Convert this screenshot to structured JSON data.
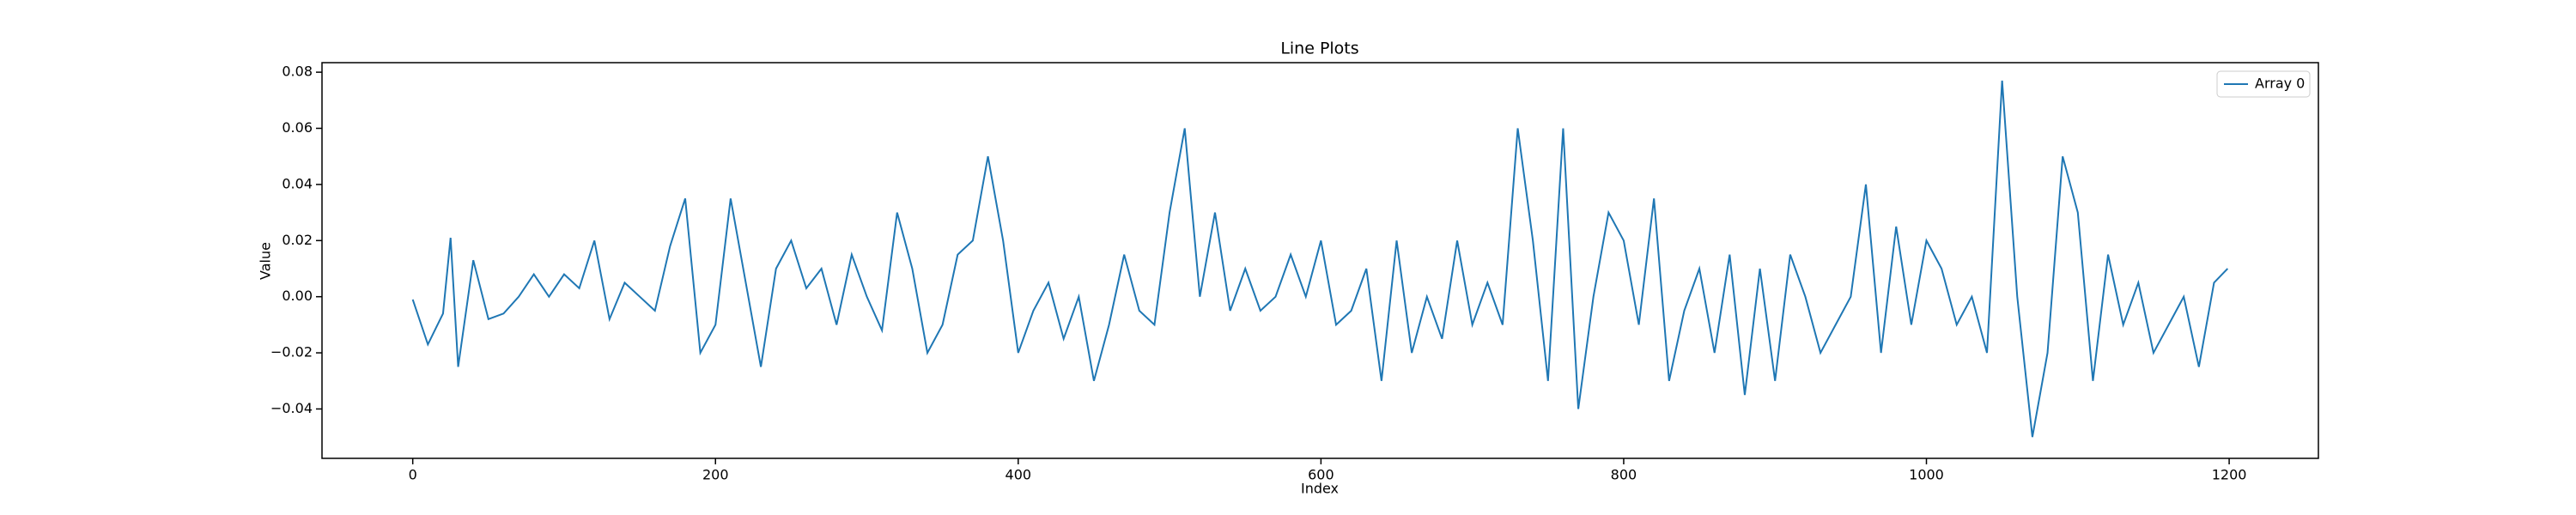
{
  "chart_data": {
    "type": "line",
    "title": "Line Plots",
    "xlabel": "Index",
    "ylabel": "Value",
    "x": [
      0,
      10,
      20,
      25,
      30,
      40,
      50,
      60,
      70,
      80,
      90,
      100,
      110,
      120,
      130,
      140,
      150,
      160,
      170,
      180,
      190,
      200,
      210,
      220,
      230,
      240,
      250,
      260,
      270,
      280,
      290,
      300,
      310,
      320,
      330,
      340,
      350,
      360,
      370,
      380,
      390,
      400,
      410,
      420,
      430,
      440,
      450,
      460,
      470,
      480,
      490,
      500,
      510,
      520,
      530,
      540,
      550,
      560,
      570,
      580,
      590,
      600,
      610,
      620,
      630,
      640,
      650,
      660,
      670,
      680,
      690,
      700,
      710,
      720,
      730,
      740,
      750,
      760,
      770,
      780,
      790,
      800,
      810,
      820,
      830,
      840,
      850,
      860,
      870,
      880,
      890,
      900,
      910,
      920,
      930,
      940,
      950,
      960,
      970,
      980,
      990,
      1000,
      1010,
      1020,
      1030,
      1040,
      1050,
      1060,
      1070,
      1080,
      1090,
      1100,
      1110,
      1120,
      1130,
      1140,
      1150,
      1160,
      1170,
      1180,
      1190,
      1199
    ],
    "series": [
      {
        "name": "Array 0",
        "color": "#1f77b4",
        "values": [
          -0.001,
          -0.017,
          -0.006,
          0.021,
          -0.025,
          0.013,
          -0.008,
          -0.006,
          0.0,
          0.008,
          0.0,
          0.008,
          0.003,
          0.02,
          -0.008,
          0.005,
          0.0,
          -0.005,
          0.018,
          0.035,
          -0.02,
          -0.01,
          0.035,
          0.005,
          -0.025,
          0.01,
          0.02,
          0.003,
          0.01,
          -0.01,
          0.015,
          0.0,
          -0.012,
          0.03,
          0.01,
          -0.02,
          -0.01,
          0.015,
          0.02,
          0.05,
          0.02,
          -0.02,
          -0.005,
          0.005,
          -0.015,
          0.0,
          -0.03,
          -0.01,
          0.015,
          -0.005,
          -0.01,
          0.03,
          0.06,
          0.0,
          0.03,
          -0.005,
          0.01,
          -0.005,
          0.0,
          0.015,
          0.0,
          0.02,
          -0.01,
          -0.005,
          0.01,
          -0.03,
          0.02,
          -0.02,
          0.0,
          -0.015,
          0.02,
          -0.01,
          0.005,
          -0.01,
          0.06,
          0.02,
          -0.03,
          0.06,
          -0.04,
          0.0,
          0.03,
          0.02,
          -0.01,
          0.035,
          -0.03,
          -0.005,
          0.01,
          -0.02,
          0.015,
          -0.035,
          0.01,
          -0.03,
          0.015,
          0.0,
          -0.02,
          -0.01,
          0.0,
          0.04,
          -0.02,
          0.025,
          -0.01,
          0.02,
          0.01,
          -0.01,
          0.0,
          -0.02,
          0.077,
          0.0,
          -0.05,
          -0.02,
          0.05,
          0.03,
          -0.03,
          0.015,
          -0.01,
          0.005,
          -0.02,
          -0.01,
          0.0,
          -0.025,
          0.005,
          0.01
        ]
      }
    ],
    "xlim": [
      -59.95,
      1258.95
    ],
    "xticks": [
      0,
      200,
      400,
      600,
      800,
      1000,
      1200
    ],
    "ylim": [
      -0.0576,
      0.0834
    ],
    "yticks": [
      {
        "value": -0.04,
        "label": "−0.04"
      },
      {
        "value": -0.02,
        "label": "−0.02"
      },
      {
        "value": 0,
        "label": "0.00"
      },
      {
        "value": 0.02,
        "label": "0.02"
      },
      {
        "value": 0.04,
        "label": "0.04"
      },
      {
        "value": 0.06,
        "label": "0.06"
      },
      {
        "value": 0.08,
        "label": "0.08"
      }
    ],
    "legend": "upper right",
    "grid": false
  }
}
